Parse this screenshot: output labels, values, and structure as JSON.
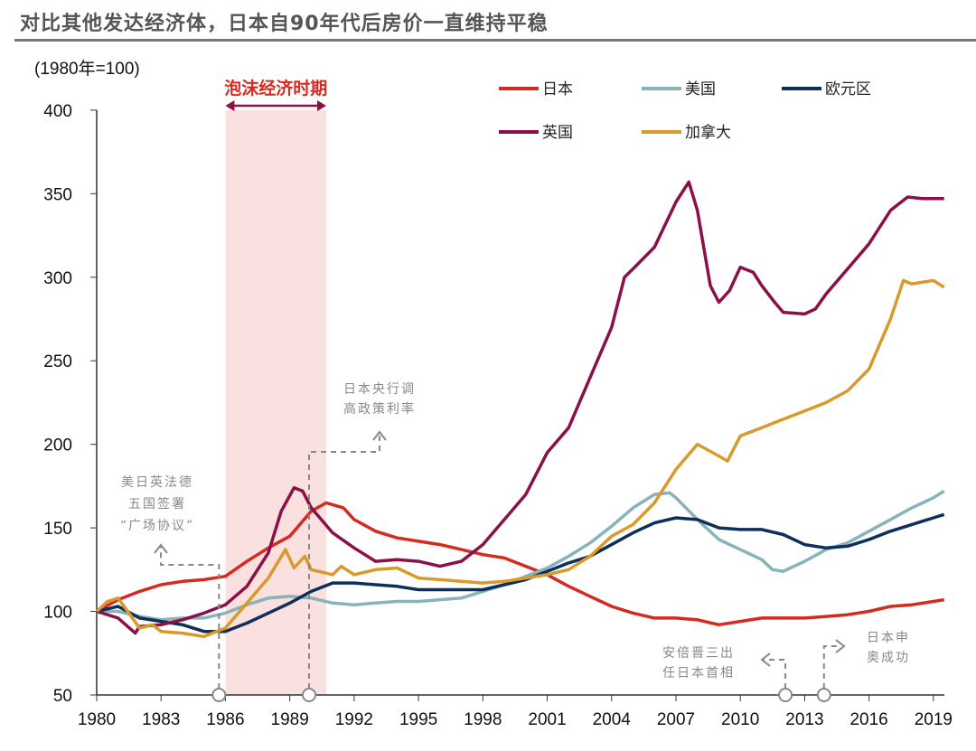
{
  "title": "对比其他发达经济体，日本自90年代后房价一直维持平稳",
  "chart_data": {
    "type": "line",
    "unit_label": "(1980年=100)",
    "ylim": [
      50,
      400
    ],
    "yticks": [
      50,
      100,
      150,
      200,
      250,
      300,
      350,
      400
    ],
    "xlim": [
      1980,
      2019.6
    ],
    "xticks": [
      1980,
      1983,
      1986,
      1989,
      1992,
      1995,
      1998,
      2001,
      2004,
      2007,
      2010,
      2013,
      2016,
      2019
    ],
    "grid": false,
    "legend_position": "top-right",
    "shaded_period": {
      "label": "泡沫经济时期",
      "start": 1986,
      "end": 1990.7,
      "color": "#fbe0e0"
    },
    "annotations": [
      {
        "x": 1985.7,
        "lines": [
          "美日英法德",
          "五国签署",
          "“广场协议”"
        ]
      },
      {
        "x": 1989.9,
        "lines": [
          "日本央行调",
          "高政策利率"
        ]
      },
      {
        "x": 2012.1,
        "lines": [
          "安倍晋三出",
          "任日本首相"
        ]
      },
      {
        "x": 2013.9,
        "lines": [
          "日本申",
          "奥成功"
        ]
      }
    ],
    "series": [
      {
        "name": "日本",
        "color": "#d42a20",
        "points": [
          [
            1980,
            100
          ],
          [
            1981,
            107
          ],
          [
            1982,
            112
          ],
          [
            1983,
            116
          ],
          [
            1984,
            118
          ],
          [
            1985,
            119
          ],
          [
            1986,
            121
          ],
          [
            1987,
            130
          ],
          [
            1988,
            138
          ],
          [
            1989,
            145
          ],
          [
            1990,
            160
          ],
          [
            1990.7,
            165
          ],
          [
            1991.5,
            162
          ],
          [
            1992,
            155
          ],
          [
            1993,
            148
          ],
          [
            1994,
            144
          ],
          [
            1995,
            142
          ],
          [
            1996,
            140
          ],
          [
            1997,
            137
          ],
          [
            1998,
            134
          ],
          [
            1999,
            132
          ],
          [
            2000,
            127
          ],
          [
            2001,
            122
          ],
          [
            2002,
            115
          ],
          [
            2003,
            109
          ],
          [
            2004,
            103
          ],
          [
            2005,
            99
          ],
          [
            2006,
            96
          ],
          [
            2007,
            96
          ],
          [
            2008,
            95
          ],
          [
            2009,
            92
          ],
          [
            2010,
            94
          ],
          [
            2011,
            96
          ],
          [
            2012,
            96
          ],
          [
            2013,
            96
          ],
          [
            2014,
            97
          ],
          [
            2015,
            98
          ],
          [
            2016,
            100
          ],
          [
            2017,
            103
          ],
          [
            2018,
            104
          ],
          [
            2019,
            106
          ],
          [
            2019.5,
            107
          ]
        ]
      },
      {
        "name": "美国",
        "color": "#86b4b8",
        "points": [
          [
            1980,
            100
          ],
          [
            1981,
            100
          ],
          [
            1982,
            97
          ],
          [
            1983,
            95
          ],
          [
            1984,
            96
          ],
          [
            1985,
            96
          ],
          [
            1986,
            99
          ],
          [
            1987,
            104
          ],
          [
            1988,
            108
          ],
          [
            1989,
            109
          ],
          [
            1990,
            108
          ],
          [
            1991,
            105
          ],
          [
            1992,
            104
          ],
          [
            1993,
            105
          ],
          [
            1994,
            106
          ],
          [
            1995,
            106
          ],
          [
            1996,
            107
          ],
          [
            1997,
            108
          ],
          [
            1998,
            112
          ],
          [
            1999,
            116
          ],
          [
            2000,
            121
          ],
          [
            2001,
            126
          ],
          [
            2002,
            133
          ],
          [
            2003,
            141
          ],
          [
            2004,
            151
          ],
          [
            2005,
            162
          ],
          [
            2006,
            170
          ],
          [
            2006.7,
            171
          ],
          [
            2007,
            168
          ],
          [
            2008,
            155
          ],
          [
            2009,
            143
          ],
          [
            2010,
            137
          ],
          [
            2011,
            131
          ],
          [
            2011.5,
            125
          ],
          [
            2012,
            124
          ],
          [
            2013,
            130
          ],
          [
            2014,
            137
          ],
          [
            2015,
            141
          ],
          [
            2016,
            148
          ],
          [
            2017,
            155
          ],
          [
            2018,
            162
          ],
          [
            2019,
            168
          ],
          [
            2019.5,
            172
          ]
        ]
      },
      {
        "name": "欧元区",
        "color": "#0d2f5a",
        "points": [
          [
            1980,
            100
          ],
          [
            1981,
            103
          ],
          [
            1982,
            96
          ],
          [
            1983,
            94
          ],
          [
            1984,
            92
          ],
          [
            1985,
            88
          ],
          [
            1986,
            88
          ],
          [
            1987,
            93
          ],
          [
            1988,
            99
          ],
          [
            1989,
            105
          ],
          [
            1990,
            112
          ],
          [
            1991,
            117
          ],
          [
            1992,
            117
          ],
          [
            1993,
            116
          ],
          [
            1994,
            115
          ],
          [
            1995,
            113
          ],
          [
            1996,
            113
          ],
          [
            1997,
            113
          ],
          [
            1998,
            113
          ],
          [
            1999,
            116
          ],
          [
            2000,
            119
          ],
          [
            2001,
            124
          ],
          [
            2002,
            129
          ],
          [
            2003,
            133
          ],
          [
            2004,
            140
          ],
          [
            2005,
            147
          ],
          [
            2006,
            153
          ],
          [
            2007,
            156
          ],
          [
            2008,
            155
          ],
          [
            2009,
            150
          ],
          [
            2010,
            149
          ],
          [
            2011,
            149
          ],
          [
            2012,
            146
          ],
          [
            2013,
            140
          ],
          [
            2014,
            138
          ],
          [
            2015,
            139
          ],
          [
            2016,
            143
          ],
          [
            2017,
            148
          ],
          [
            2018,
            152
          ],
          [
            2019,
            156
          ],
          [
            2019.5,
            158
          ]
        ]
      },
      {
        "name": "英国",
        "color": "#8b1048",
        "points": [
          [
            1980,
            100
          ],
          [
            1981,
            96
          ],
          [
            1981.8,
            87
          ],
          [
            1982,
            91
          ],
          [
            1983,
            92
          ],
          [
            1984,
            95
          ],
          [
            1985,
            99
          ],
          [
            1986,
            104
          ],
          [
            1987,
            115
          ],
          [
            1988,
            135
          ],
          [
            1988.6,
            160
          ],
          [
            1989.2,
            174
          ],
          [
            1989.6,
            172
          ],
          [
            1990,
            162
          ],
          [
            1991,
            147
          ],
          [
            1992,
            138
          ],
          [
            1993,
            130
          ],
          [
            1994,
            131
          ],
          [
            1995,
            130
          ],
          [
            1996,
            127
          ],
          [
            1997,
            130
          ],
          [
            1998,
            140
          ],
          [
            1999,
            155
          ],
          [
            2000,
            170
          ],
          [
            2001,
            195
          ],
          [
            2002,
            210
          ],
          [
            2003,
            240
          ],
          [
            2004,
            270
          ],
          [
            2004.6,
            300
          ],
          [
            2005,
            305
          ],
          [
            2006,
            318
          ],
          [
            2007,
            345
          ],
          [
            2007.6,
            357
          ],
          [
            2008,
            340
          ],
          [
            2008.6,
            295
          ],
          [
            2009,
            285
          ],
          [
            2009.5,
            292
          ],
          [
            2010,
            306
          ],
          [
            2010.6,
            303
          ],
          [
            2011,
            295
          ],
          [
            2011.6,
            285
          ],
          [
            2012,
            279
          ],
          [
            2013,
            278
          ],
          [
            2013.5,
            281
          ],
          [
            2014,
            290
          ],
          [
            2015,
            305
          ],
          [
            2016,
            320
          ],
          [
            2016.5,
            330
          ],
          [
            2017,
            340
          ],
          [
            2017.8,
            348
          ],
          [
            2018.5,
            347
          ],
          [
            2019,
            347
          ],
          [
            2019.5,
            347
          ]
        ]
      },
      {
        "name": "加拿大",
        "color": "#d99a2b",
        "points": [
          [
            1980,
            100
          ],
          [
            1980.5,
            106
          ],
          [
            1981,
            108
          ],
          [
            1982,
            90
          ],
          [
            1982.6,
            92
          ],
          [
            1983,
            88
          ],
          [
            1984,
            87
          ],
          [
            1985,
            85
          ],
          [
            1986,
            90
          ],
          [
            1987,
            105
          ],
          [
            1988,
            120
          ],
          [
            1988.8,
            137
          ],
          [
            1989.2,
            126
          ],
          [
            1989.7,
            133
          ],
          [
            1990,
            125
          ],
          [
            1991,
            122
          ],
          [
            1991.4,
            127
          ],
          [
            1992,
            122
          ],
          [
            1993,
            125
          ],
          [
            1994,
            126
          ],
          [
            1995,
            120
          ],
          [
            1996,
            119
          ],
          [
            1997,
            118
          ],
          [
            1998,
            117
          ],
          [
            1999,
            118
          ],
          [
            2000,
            120
          ],
          [
            2001,
            122
          ],
          [
            2002,
            125
          ],
          [
            2003,
            133
          ],
          [
            2004,
            145
          ],
          [
            2005,
            152
          ],
          [
            2006,
            165
          ],
          [
            2007,
            185
          ],
          [
            2008,
            200
          ],
          [
            2009,
            193
          ],
          [
            2009.4,
            190
          ],
          [
            2010,
            205
          ],
          [
            2011,
            210
          ],
          [
            2012,
            215
          ],
          [
            2013,
            220
          ],
          [
            2014,
            225
          ],
          [
            2015,
            232
          ],
          [
            2016,
            245
          ],
          [
            2017,
            275
          ],
          [
            2017.6,
            298
          ],
          [
            2018,
            296
          ],
          [
            2019,
            298
          ],
          [
            2019.5,
            294
          ]
        ]
      }
    ]
  }
}
